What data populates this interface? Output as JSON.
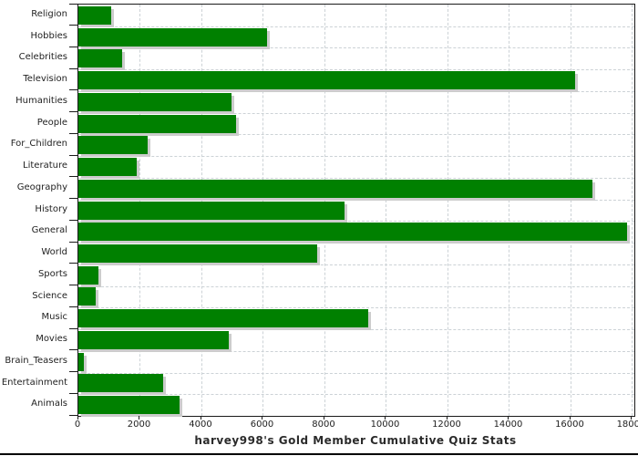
{
  "chart_data": {
    "type": "bar",
    "orientation": "horizontal",
    "title": "harvey998's Gold Member Cumulative Quiz Stats",
    "categories": [
      "Religion",
      "Hobbies",
      "Celebrities",
      "Television",
      "Humanities",
      "People",
      "For_Children",
      "Literature",
      "Geography",
      "History",
      "General",
      "World",
      "Sports",
      "Science",
      "Music",
      "Movies",
      "Brain_Teasers",
      "Entertainment",
      "Animals"
    ],
    "values": [
      1080,
      6120,
      1420,
      16150,
      4980,
      5120,
      2250,
      1900,
      16700,
      8650,
      17830,
      7760,
      650,
      550,
      9420,
      4890,
      180,
      2760,
      3290
    ],
    "x_ticks": [
      0,
      2000,
      4000,
      6000,
      8000,
      10000,
      12000,
      14000,
      16000,
      18000
    ],
    "xlim": [
      0,
      18075
    ],
    "grid": true,
    "legend": "none",
    "bar_color": "#008000",
    "shadow_color": "#cccccc",
    "grid_color": "#ccd2d6",
    "text_color": "#222222"
  }
}
